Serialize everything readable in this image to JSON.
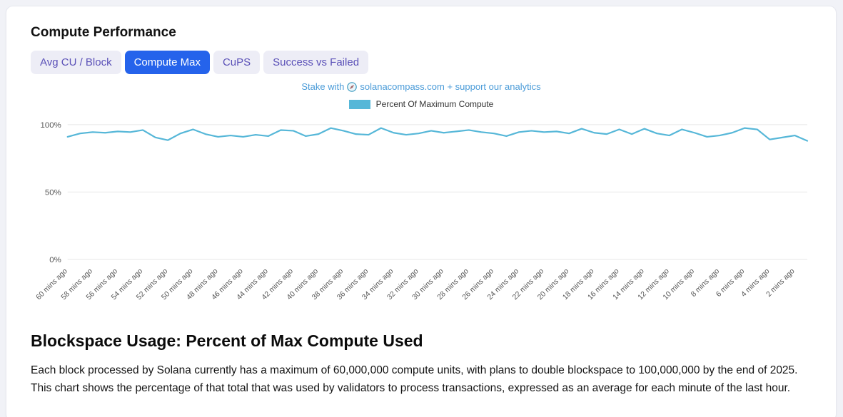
{
  "header": {
    "title": "Compute Performance"
  },
  "tabs": [
    {
      "label": "Avg CU / Block",
      "active": false
    },
    {
      "label": "Compute Max",
      "active": true
    },
    {
      "label": "CuPS",
      "active": false
    },
    {
      "label": "Success vs Failed",
      "active": false
    }
  ],
  "promo": {
    "prefix": "Stake with",
    "suffix": "solanacompass.com + support our analytics"
  },
  "legend": {
    "label": "Percent Of Maximum Compute",
    "swatch_color": "#56b7d8"
  },
  "section": {
    "heading": "Blockspace Usage: Percent of Max Compute Used",
    "description": "Each block processed by Solana currently has a maximum of 60,000,000 compute units, with plans to double blockspace to 100,000,000 by the end of 2025. This chart shows the percentage of that total that was used by validators to process transactions, expressed as an average for each minute of the last hour."
  },
  "colors": {
    "line_teal": "#56b7d8",
    "active_tab_bg": "#2563eb",
    "inactive_tab_text": "#5b51b8",
    "next_section_strip": "#4cc4de"
  },
  "chart_data": {
    "type": "line",
    "title": "",
    "xlabel": "",
    "ylabel": "",
    "ylim": [
      0,
      100
    ],
    "grid": true,
    "legend_position": "top",
    "y_ticks": [
      "0%",
      "50%",
      "100%"
    ],
    "y_tick_values": [
      0,
      50,
      100
    ],
    "x_labels": [
      "60 mins ago",
      "58 mins ago",
      "56 mins ago",
      "54 mins ago",
      "52 mins ago",
      "50 mins ago",
      "48 mins ago",
      "46 mins ago",
      "44 mins ago",
      "42 mins ago",
      "40 mins ago",
      "38 mins ago",
      "36 mins ago",
      "34 mins ago",
      "32 mins ago",
      "30 mins ago",
      "28 mins ago",
      "26 mins ago",
      "24 mins ago",
      "22 mins ago",
      "20 mins ago",
      "18 mins ago",
      "16 mins ago",
      "14 mins ago",
      "12 mins ago",
      "10 mins ago",
      "8 mins ago",
      "6 mins ago",
      "4 mins ago",
      "2 mins ago"
    ],
    "series": [
      {
        "name": "Percent Of Maximum Compute",
        "color": "#56b7d8",
        "values": [
          91.0,
          93.5,
          94.5,
          94.0,
          95.0,
          94.5,
          96.0,
          90.5,
          88.5,
          93.5,
          96.5,
          93.0,
          91.0,
          92.0,
          91.0,
          92.5,
          91.5,
          96.0,
          95.5,
          91.5,
          93.0,
          97.5,
          95.5,
          93.0,
          92.5,
          97.5,
          94.0,
          92.5,
          93.5,
          95.5,
          94.0,
          95.0,
          96.0,
          94.5,
          93.5,
          91.5,
          94.5,
          95.5,
          94.5,
          95.0,
          93.5,
          97.0,
          94.0,
          93.0,
          96.5,
          93.0,
          97.0,
          93.5,
          92.0,
          96.5,
          94.0,
          91.0,
          92.0,
          94.0,
          97.5,
          96.5,
          89.0,
          90.5,
          92.0,
          88.0
        ]
      }
    ]
  }
}
